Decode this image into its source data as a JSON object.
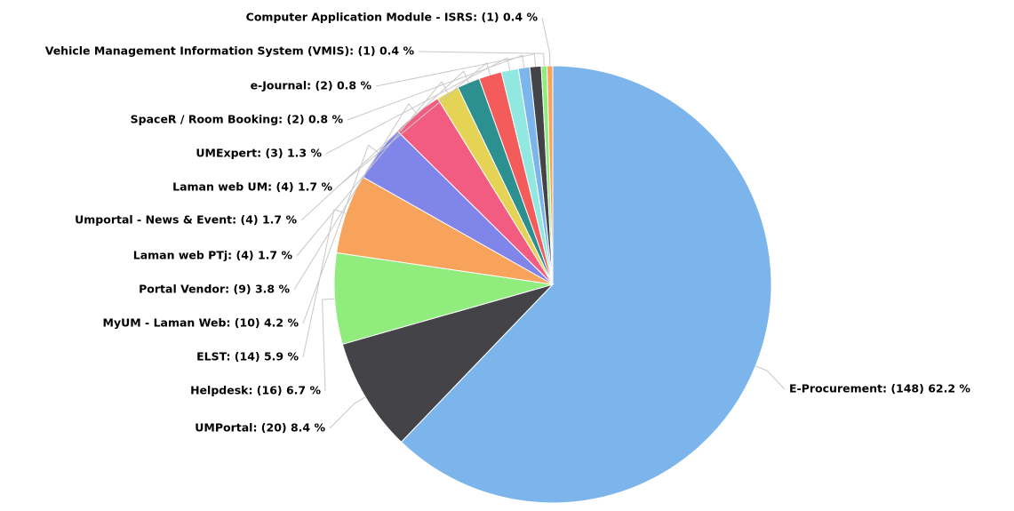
{
  "chart_data": {
    "type": "pie",
    "values": [
      148,
      20,
      16,
      14,
      10,
      9,
      4,
      4,
      4,
      3,
      2,
      2,
      1,
      1
    ],
    "value_labels": [
      "E-Procurement: (148) 62.2 %",
      "UMPortal: (20) 8.4 %",
      "Helpdesk: (16) 6.7 %",
      "ELST: (14) 5.9 %",
      "MyUM - Laman Web: (10) 4.2 %",
      "Portal Vendor: (9) 3.8 %",
      "Laman web PTj: (4) 1.7 %",
      "Umportal - News & Event: (4) 1.7 %",
      "Laman web UM: (4) 1.7 %",
      "UMExpert: (3) 1.3 %",
      "SpaceR / Room Booking: (2) 0.8 %",
      "e-Journal: (2) 0.8 %",
      "Vehicle Management Information System (VMIS): (1) 0.4 %",
      "Computer Application Module - ISRS: (1) 0.4 %"
    ],
    "colors": [
      "#7cb5ec",
      "#434348",
      "#90ed7d",
      "#f7a35c",
      "#8085e9",
      "#f15c80",
      "#e4d354",
      "#2b908f",
      "#f45b5b",
      "#91e8e1",
      "#7cb5ec",
      "#434348",
      "#90ed7d",
      "#f7a35c"
    ]
  }
}
